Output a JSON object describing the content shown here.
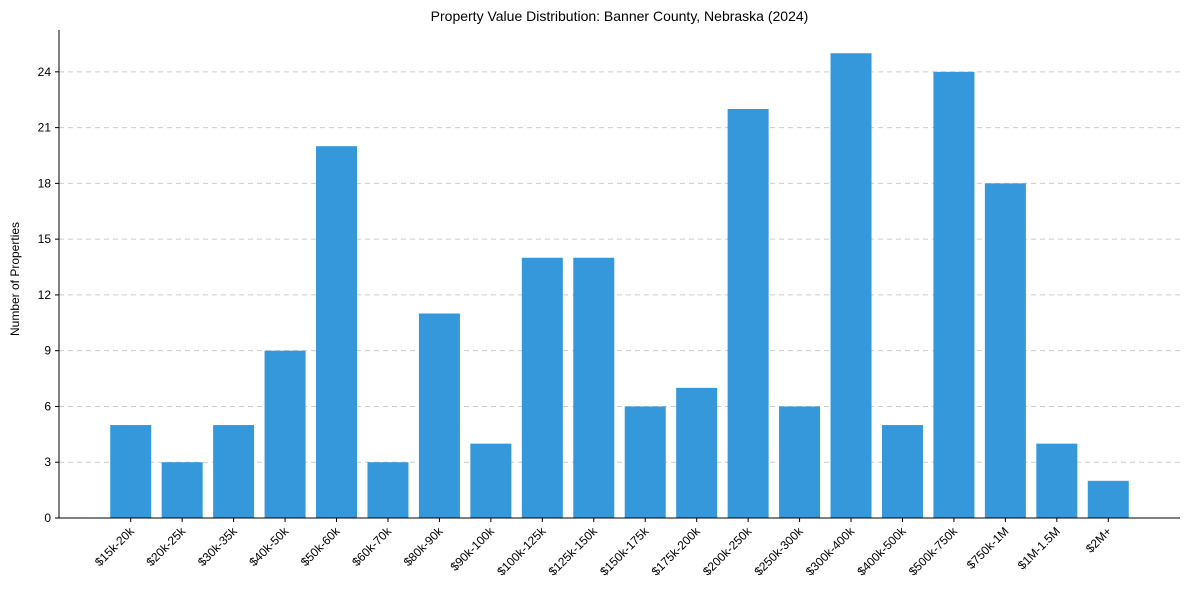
{
  "chart_data": {
    "type": "bar",
    "title": "Property Value Distribution: Banner County, Nebraska (2024)",
    "xlabel": "",
    "ylabel": "Number of Properties",
    "categories": [
      "$15k-20k",
      "$20k-25k",
      "$30k-35k",
      "$40k-50k",
      "$50k-60k",
      "$60k-70k",
      "$80k-90k",
      "$90k-100k",
      "$100k-125k",
      "$125k-150k",
      "$150k-175k",
      "$175k-200k",
      "$200k-250k",
      "$250k-300k",
      "$300k-400k",
      "$400k-500k",
      "$500k-750k",
      "$750k-1M",
      "$1M-1.5M",
      "$2M+"
    ],
    "values": [
      5,
      3,
      5,
      9,
      20,
      3,
      11,
      4,
      14,
      14,
      6,
      7,
      22,
      6,
      25,
      5,
      24,
      18,
      4,
      2
    ],
    "ylim": [
      0,
      26.25
    ],
    "yticks": [
      0,
      3,
      6,
      9,
      12,
      15,
      18,
      21,
      24
    ],
    "grid": "y-dashed",
    "bar_color": "#3498db"
  }
}
